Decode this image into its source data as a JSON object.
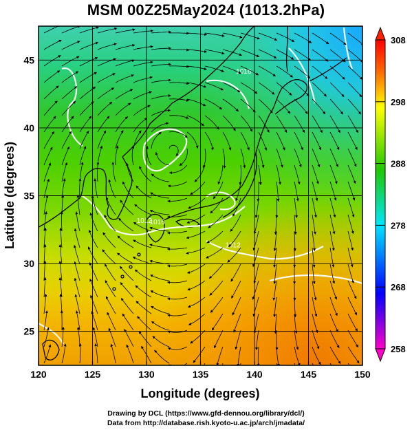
{
  "title": "MSM 00Z25May2024 (1013.2hPa)",
  "credits": {
    "line1": "Drawing by DCL (https://www.gfd-dennou.org/library/dcl/)",
    "line2": "Data from http://database.rish.kyoto-u.ac.jp/arch/jmadata/"
  },
  "map": {
    "xlabel": "Longitude (degrees)",
    "ylabel": "Latitude  (degrees)",
    "lon_range": [
      120,
      150
    ],
    "lat_range": [
      22.5,
      47.5
    ],
    "lon_ticks": [
      120,
      125,
      130,
      135,
      140,
      145,
      150
    ],
    "lat_ticks": [
      25,
      30,
      35,
      40,
      45
    ],
    "grid": true,
    "isobar_labels": [
      {
        "text": "1016",
        "lon": 139.0,
        "lat": 44.0
      },
      {
        "text": "1012",
        "lon": 129.8,
        "lat": 33.0
      },
      {
        "text": "1016",
        "lon": 131.0,
        "lat": 32.9
      },
      {
        "text": "1012",
        "lon": 138.0,
        "lat": 31.2
      }
    ]
  },
  "colorbar": {
    "label_ticks": [
      258,
      268,
      278,
      288,
      298,
      308
    ],
    "range": [
      258,
      308
    ],
    "colors": [
      "#ff00c8",
      "#0000ff",
      "#00e6ff",
      "#1fc800",
      "#ffff00",
      "#ff6600",
      "#ff0000"
    ]
  }
}
